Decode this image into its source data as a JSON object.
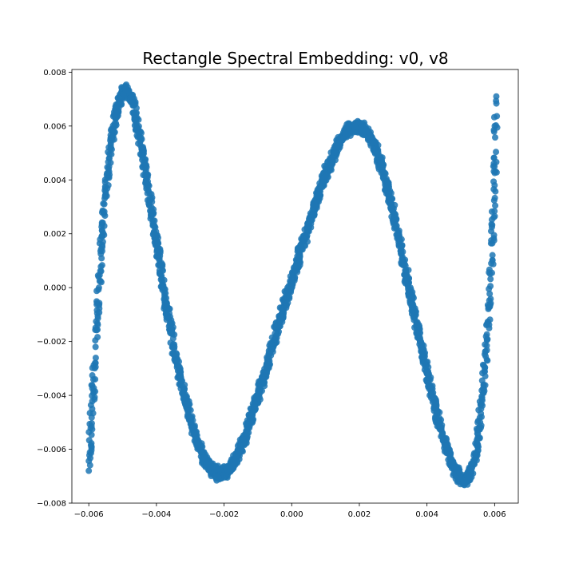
{
  "chart_data": {
    "type": "scatter",
    "title": "Rectangle Spectral Embedding: v0, v8",
    "xlabel": "",
    "ylabel": "",
    "xlim": [
      -0.0065,
      0.0067
    ],
    "ylim": [
      -0.008,
      0.0081
    ],
    "xticks": [
      -0.006,
      -0.004,
      -0.002,
      0.0,
      0.002,
      0.004,
      0.006
    ],
    "xtick_labels": [
      "−0.006",
      "−0.004",
      "−0.002",
      "0.000",
      "0.002",
      "0.004",
      "0.006"
    ],
    "yticks": [
      -0.008,
      -0.006,
      -0.004,
      -0.002,
      0.0,
      0.002,
      0.004,
      0.006,
      0.008
    ],
    "ytick_labels": [
      "−0.008",
      "−0.006",
      "−0.004",
      "−0.002",
      "0.000",
      "0.002",
      "0.004",
      "0.006",
      "0.008"
    ],
    "grid": false,
    "series": [
      {
        "color": "#1f77b4",
        "opacity": 0.85,
        "x": [
          -0.006,
          -0.0059,
          -0.0058,
          -0.0057,
          -0.0056,
          -0.0055,
          -0.0054,
          -0.0053,
          -0.0052,
          -0.0051,
          -0.005,
          -0.0049,
          -0.0048,
          -0.0047,
          -0.0046,
          -0.0045,
          -0.0044,
          -0.0043,
          -0.0042,
          -0.0041,
          -0.004,
          -0.0039,
          -0.0038,
          -0.0037,
          -0.0036,
          -0.0035,
          -0.0034,
          -0.0033,
          -0.0032,
          -0.0031,
          -0.003,
          -0.0029,
          -0.0028,
          -0.0027,
          -0.0026,
          -0.0025,
          -0.0024,
          -0.0023,
          -0.0022,
          -0.0021,
          -0.002,
          -0.0019,
          -0.0018,
          -0.0017,
          -0.0016,
          -0.0015,
          -0.0014,
          -0.0013,
          -0.0012,
          -0.0011,
          -0.001,
          -0.0009,
          -0.0008,
          -0.0007,
          -0.0006,
          -0.0005,
          -0.0004,
          -0.0003,
          -0.0002,
          -0.0001,
          0.0,
          0.0001,
          0.0002,
          0.0003,
          0.0004,
          0.0005,
          0.0006,
          0.0007,
          0.0008,
          0.0009,
          0.001,
          0.0011,
          0.0012,
          0.0013,
          0.0014,
          0.0015,
          0.0016,
          0.0017,
          0.0018,
          0.0019,
          0.002,
          0.0021,
          0.0022,
          0.0023,
          0.0024,
          0.0025,
          0.0026,
          0.0027,
          0.0028,
          0.0029,
          0.003,
          0.0031,
          0.0032,
          0.0033,
          0.0034,
          0.0035,
          0.0036,
          0.0037,
          0.0038,
          0.0039,
          0.004,
          0.0041,
          0.0042,
          0.0043,
          0.0044,
          0.0045,
          0.0046,
          0.0047,
          0.0048,
          0.0049,
          0.005,
          0.0051,
          0.0052,
          0.0053,
          0.0054,
          0.0055,
          0.0056,
          0.0057,
          0.0058,
          0.0059,
          0.006,
          0.00605
        ],
        "y": [
          -0.0068,
          -0.0045,
          -0.0022,
          0.0,
          0.0019,
          0.0035,
          0.0048,
          0.0058,
          0.0065,
          0.0069,
          0.0072,
          0.0073,
          0.0072,
          0.0069,
          0.0063,
          0.0056,
          0.0049,
          0.0041,
          0.0033,
          0.0025,
          0.0017,
          0.0009,
          0.0001,
          -0.0007,
          -0.0014,
          -0.0021,
          -0.0028,
          -0.0034,
          -0.0039,
          -0.0044,
          -0.0049,
          -0.0053,
          -0.0057,
          -0.006,
          -0.0063,
          -0.0065,
          -0.0067,
          -0.0068,
          -0.0069,
          -0.0069,
          -0.0069,
          -0.0068,
          -0.0067,
          -0.0065,
          -0.0062,
          -0.0059,
          -0.0056,
          -0.0052,
          -0.0048,
          -0.0044,
          -0.004,
          -0.0036,
          -0.0032,
          -0.0028,
          -0.0023,
          -0.0019,
          -0.0014,
          -0.001,
          -0.0006,
          -0.0002,
          0.0002,
          0.0007,
          0.0011,
          0.0015,
          0.0019,
          0.0023,
          0.0027,
          0.0031,
          0.0035,
          0.0039,
          0.0042,
          0.0045,
          0.0048,
          0.0051,
          0.0054,
          0.0056,
          0.0058,
          0.0059,
          0.006,
          0.006,
          0.006,
          0.0059,
          0.0058,
          0.0056,
          0.0054,
          0.0051,
          0.0047,
          0.0043,
          0.0038,
          0.0033,
          0.0028,
          0.0022,
          0.0016,
          0.001,
          0.0004,
          -0.0002,
          -0.0008,
          -0.0014,
          -0.002,
          -0.0026,
          -0.0031,
          -0.0037,
          -0.0042,
          -0.0047,
          -0.0052,
          -0.0056,
          -0.006,
          -0.0064,
          -0.0067,
          -0.0069,
          -0.0071,
          -0.0072,
          -0.0071,
          -0.0069,
          -0.0064,
          -0.0056,
          -0.0045,
          -0.0031,
          -0.0013,
          0.0009,
          0.0038,
          0.0071
        ]
      }
    ]
  }
}
